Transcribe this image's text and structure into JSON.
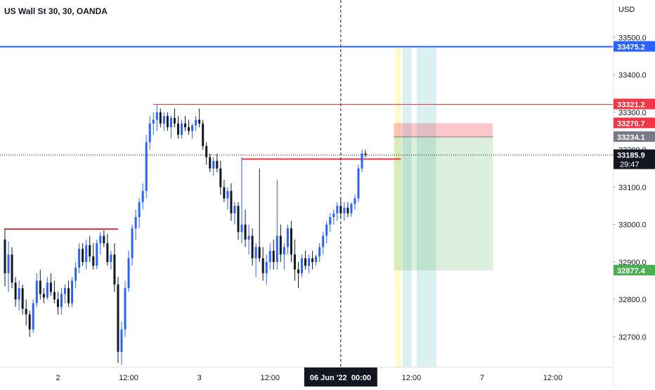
{
  "chart_data": {
    "type": "candlestick",
    "title": "US Wall St 30, 30, OANDA",
    "currency": "USD",
    "ylim": [
      32620,
      33600
    ],
    "y_ticks": [
      32700,
      32800,
      32900,
      33000,
      33100,
      33200,
      33300,
      33400,
      33500
    ],
    "y_tick_labels": [
      "32700.0",
      "32800.0",
      "32900.0",
      "33000.0",
      "33100.0",
      "33200.0",
      "33300.0",
      "33400.0",
      "33500.0"
    ],
    "x_ticks": [
      {
        "label": "2",
        "index": 15
      },
      {
        "label": "12:00",
        "index": 35
      },
      {
        "label": "3",
        "index": 55
      },
      {
        "label": "12:00",
        "index": 75
      },
      {
        "label": "12:00",
        "index": 115
      },
      {
        "label": "7",
        "index": 135
      },
      {
        "label": "12:00",
        "index": 155
      }
    ],
    "crosshair": {
      "index": 95,
      "date_label": "06 Jun '22",
      "time_label": "00:00",
      "price": 33185.9,
      "countdown": "29:47"
    },
    "horizontal_lines": [
      {
        "price": 33475.2,
        "label": "33475.2",
        "color": "#2962ff",
        "extend": "full"
      },
      {
        "price": 33321.2,
        "label": "33321.2",
        "color": "#f23645",
        "extend": "right",
        "from_index": 42
      }
    ],
    "support_resistance": [
      {
        "price": 32988,
        "from_index": 0,
        "to_index": 32,
        "color": "#f23645"
      },
      {
        "price": 33175,
        "from_index": 67,
        "to_index": 112,
        "color": "#f23645"
      }
    ],
    "position_tool": {
      "from_index": 110,
      "to_index": 138,
      "stop": 33270.7,
      "entry": 33234.1,
      "target": 32877.4,
      "stop_label": "33270.7",
      "entry_label": "33234.1",
      "target_label": "32877.4"
    },
    "session_highlights": [
      {
        "from_index": 110.5,
        "to_index": 112,
        "color": "#fff9c4"
      },
      {
        "from_index": 112.5,
        "to_index": 115,
        "color": "#d6f0f0"
      },
      {
        "from_index": 116.5,
        "to_index": 122,
        "color": "#d6f0f0"
      }
    ],
    "candles": [
      [
        32960,
        32990,
        32835,
        32870
      ],
      [
        32870,
        32955,
        32820,
        32920
      ],
      [
        32920,
        32940,
        32830,
        32845
      ],
      [
        32845,
        32860,
        32780,
        32800
      ],
      [
        32800,
        32850,
        32770,
        32830
      ],
      [
        32830,
        32840,
        32760,
        32775
      ],
      [
        32775,
        32800,
        32730,
        32760
      ],
      [
        32760,
        32770,
        32700,
        32720
      ],
      [
        32720,
        32800,
        32710,
        32790
      ],
      [
        32790,
        32870,
        32780,
        32850
      ],
      [
        32850,
        32880,
        32800,
        32815
      ],
      [
        32815,
        32830,
        32790,
        32805
      ],
      [
        32805,
        32860,
        32800,
        32845
      ],
      [
        32845,
        32870,
        32810,
        32820
      ],
      [
        32820,
        32850,
        32790,
        32800
      ],
      [
        32800,
        32820,
        32760,
        32780
      ],
      [
        32780,
        32830,
        32760,
        32815
      ],
      [
        32815,
        32840,
        32790,
        32830
      ],
      [
        32830,
        32850,
        32780,
        32790
      ],
      [
        32790,
        32860,
        32780,
        32850
      ],
      [
        32850,
        32900,
        32830,
        32885
      ],
      [
        32885,
        32950,
        32870,
        32935
      ],
      [
        32935,
        32950,
        32890,
        32900
      ],
      [
        32900,
        32960,
        32880,
        32945
      ],
      [
        32945,
        32970,
        32900,
        32915
      ],
      [
        32915,
        32950,
        32880,
        32890
      ],
      [
        32890,
        32960,
        32880,
        32950
      ],
      [
        32950,
        32980,
        32920,
        32970
      ],
      [
        32970,
        32985,
        32940,
        32950
      ],
      [
        32950,
        32975,
        32890,
        32900
      ],
      [
        32900,
        32930,
        32880,
        32920
      ],
      [
        32920,
        32950,
        32820,
        32840
      ],
      [
        32840,
        32860,
        32630,
        32660
      ],
      [
        32660,
        32740,
        32625,
        32720
      ],
      [
        32720,
        32850,
        32700,
        32830
      ],
      [
        32830,
        32930,
        32820,
        32910
      ],
      [
        32910,
        33000,
        32890,
        32990
      ],
      [
        32990,
        33040,
        32960,
        33020
      ],
      [
        33020,
        33070,
        32990,
        33060
      ],
      [
        33060,
        33110,
        33040,
        33090
      ],
      [
        33090,
        33240,
        33070,
        33220
      ],
      [
        33220,
        33290,
        33200,
        33270
      ],
      [
        33270,
        33300,
        33240,
        33280
      ],
      [
        33280,
        33320,
        33250,
        33300
      ],
      [
        33300,
        33310,
        33260,
        33270
      ],
      [
        33270,
        33300,
        33250,
        33290
      ],
      [
        33290,
        33300,
        33250,
        33260
      ],
      [
        33260,
        33290,
        33230,
        33285
      ],
      [
        33285,
        33310,
        33260,
        33270
      ],
      [
        33270,
        33290,
        33230,
        33240
      ],
      [
        33240,
        33280,
        33230,
        33270
      ],
      [
        33270,
        33290,
        33250,
        33260
      ],
      [
        33260,
        33280,
        33240,
        33250
      ],
      [
        33250,
        33270,
        33230,
        33265
      ],
      [
        33265,
        33290,
        33250,
        33280
      ],
      [
        33280,
        33310,
        33260,
        33270
      ],
      [
        33270,
        33280,
        33200,
        33210
      ],
      [
        33210,
        33220,
        33160,
        33180
      ],
      [
        33180,
        33190,
        33140,
        33150
      ],
      [
        33150,
        33180,
        33130,
        33170
      ],
      [
        33170,
        33190,
        33140,
        33150
      ],
      [
        33150,
        33170,
        33080,
        33100
      ],
      [
        33100,
        33120,
        33060,
        33070
      ],
      [
        33070,
        33100,
        33040,
        33090
      ],
      [
        33090,
        33110,
        33010,
        33030
      ],
      [
        33030,
        33060,
        33000,
        33050
      ],
      [
        33050,
        33060,
        32960,
        32980
      ],
      [
        32980,
        33180,
        32950,
        33000
      ],
      [
        33000,
        33040,
        32940,
        32960
      ],
      [
        32960,
        33000,
        32920,
        32970
      ],
      [
        32970,
        32990,
        32890,
        32910
      ],
      [
        32910,
        32950,
        32860,
        32940
      ],
      [
        32940,
        33150,
        32900,
        32910
      ],
      [
        32910,
        32940,
        32850,
        32870
      ],
      [
        32870,
        32920,
        32840,
        32900
      ],
      [
        32900,
        32950,
        32880,
        32930
      ],
      [
        32930,
        32960,
        32880,
        32900
      ],
      [
        32900,
        33120,
        32880,
        32970
      ],
      [
        32970,
        33000,
        32900,
        32920
      ],
      [
        32920,
        32950,
        32880,
        32940
      ],
      [
        32940,
        33000,
        32920,
        32990
      ],
      [
        32990,
        33010,
        32900,
        32920
      ],
      [
        32920,
        32960,
        32850,
        32880
      ],
      [
        32880,
        32900,
        32830,
        32870
      ],
      [
        32870,
        32920,
        32860,
        32910
      ],
      [
        32910,
        32930,
        32880,
        32890
      ],
      [
        32890,
        32920,
        32870,
        32910
      ],
      [
        32910,
        32930,
        32880,
        32900
      ],
      [
        32900,
        32920,
        32890,
        32915
      ],
      [
        32915,
        32950,
        32900,
        32940
      ],
      [
        32940,
        32980,
        32920,
        32970
      ],
      [
        32970,
        33010,
        32950,
        33000
      ],
      [
        33000,
        33030,
        32980,
        33020
      ],
      [
        33020,
        33040,
        33000,
        33030
      ],
      [
        33030,
        33060,
        33010,
        33050
      ],
      [
        33050,
        33070,
        33020,
        33030
      ],
      [
        33030,
        33060,
        33010,
        33045
      ],
      [
        33045,
        33060,
        33020,
        33030
      ],
      [
        33030,
        33060,
        33020,
        33055
      ],
      [
        33055,
        33080,
        33040,
        33070
      ],
      [
        33070,
        33160,
        33060,
        33150
      ],
      [
        33150,
        33200,
        33140,
        33190
      ],
      [
        33190,
        33200,
        33180,
        33186
      ]
    ]
  }
}
